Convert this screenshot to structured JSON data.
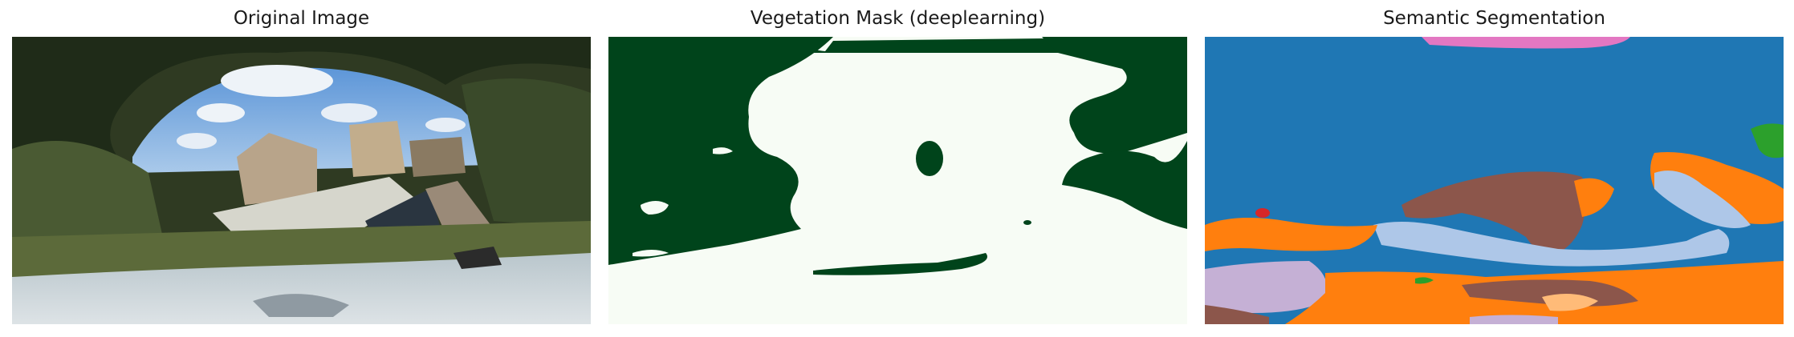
{
  "panels": [
    {
      "title": "Original Image"
    },
    {
      "title": "Vegetation Mask (deeplearning)"
    },
    {
      "title": "Semantic Segmentation"
    }
  ],
  "colors": {
    "mask_vegetation": "#00441b",
    "mask_background": "#f7fcf5",
    "seg_sky": "#1f77b4",
    "seg_orange": "#ff7f0e",
    "seg_brown": "#8c564b",
    "seg_light_blue": "#aec7e8",
    "seg_lavender": "#c5b0d5",
    "seg_pink": "#e377c2",
    "seg_green": "#2ca02c",
    "seg_red": "#d62728",
    "seg_peach": "#ffbb78"
  }
}
